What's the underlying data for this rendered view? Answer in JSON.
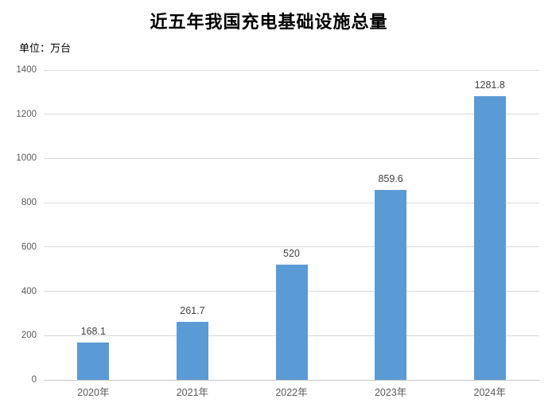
{
  "chart_data": {
    "type": "bar",
    "title": "近五年我国充电基础设施总量",
    "unit_label": "单位：万台",
    "categories": [
      "2020年",
      "2021年",
      "2022年",
      "2023年",
      "2024年"
    ],
    "values": [
      168.1,
      261.7,
      520,
      859.6,
      1281.8
    ],
    "value_labels": [
      "168.1",
      "261.7",
      "520",
      "859.6",
      "1281.8"
    ],
    "xlabel": "",
    "ylabel": "",
    "ylim": [
      0,
      1400
    ],
    "ytick_interval": 200,
    "yticks": [
      0,
      200,
      400,
      600,
      800,
      1000,
      1200,
      1400
    ],
    "grid": true,
    "legend": "none",
    "colors": {
      "bar": "#5B9BD5",
      "gridline": "#D9D9D9",
      "axis_line": "#C6C6C6",
      "tick_label": "#595959",
      "value_label": "#3F3F3F",
      "title": "#000000",
      "background": "#FFFFFF"
    }
  }
}
